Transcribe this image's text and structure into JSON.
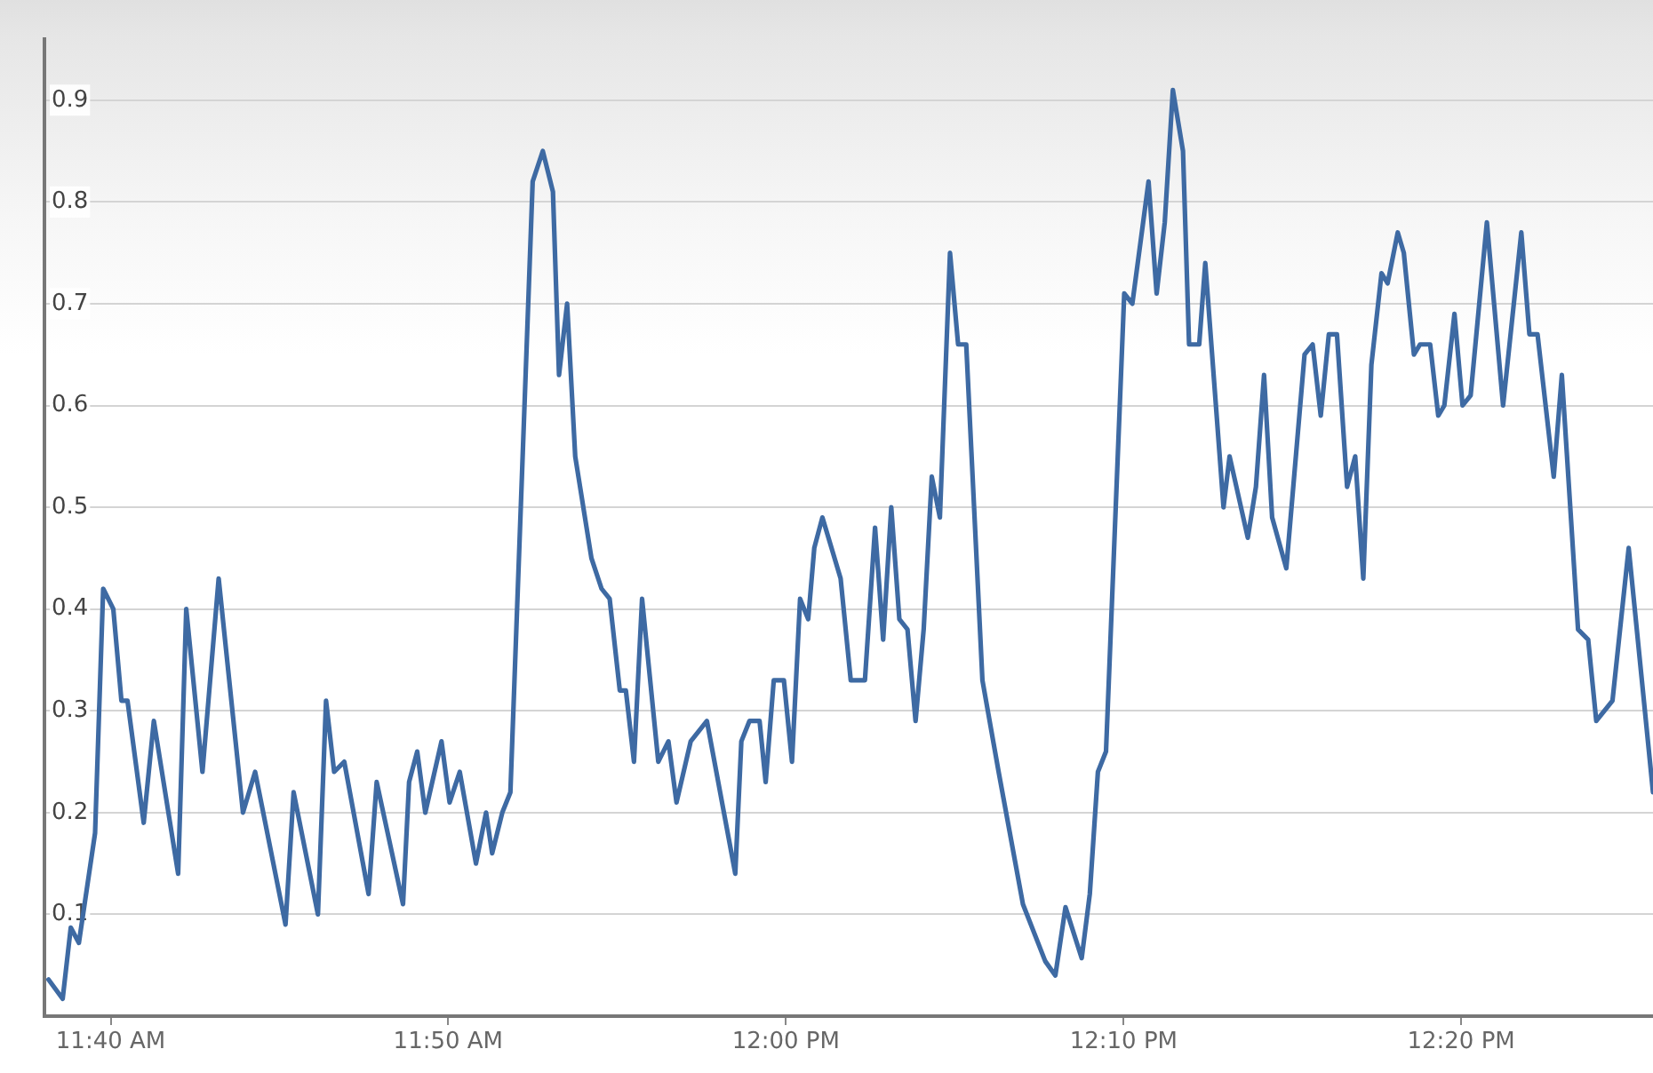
{
  "chart_data": {
    "type": "line",
    "xlim": [
      11.634,
      12.428
    ],
    "ylim": [
      0,
      0.96
    ],
    "xticks": [
      {
        "value": 11.6667,
        "label": "11:40 AM"
      },
      {
        "value": 11.8333,
        "label": "11:50 AM"
      },
      {
        "value": 12,
        "label": "12:00 PM"
      },
      {
        "value": 12.1667,
        "label": "12:10 PM"
      },
      {
        "value": 12.3333,
        "label": "12:20 PM"
      }
    ],
    "yticks": [
      0.1,
      0.2,
      0.3,
      0.4,
      0.5,
      0.6,
      0.7,
      0.8,
      0.9
    ],
    "grid": "y",
    "legend": false,
    "marker": "none",
    "line_style": "solid",
    "series": [
      {
        "color": "#3e6aa3",
        "x": [
          11.636,
          11.643,
          11.647,
          11.651,
          11.659,
          11.663,
          11.668,
          11.672,
          11.675,
          11.683,
          11.688,
          11.7,
          11.704,
          11.712,
          11.72,
          11.732,
          11.738,
          11.753,
          11.757,
          11.769,
          11.773,
          11.777,
          11.782,
          11.794,
          11.798,
          11.811,
          11.814,
          11.818,
          11.822,
          11.83,
          11.834,
          11.839,
          11.847,
          11.852,
          11.855,
          11.86,
          11.864,
          11.875,
          11.88,
          11.885,
          11.888,
          11.892,
          11.896,
          11.904,
          11.909,
          11.913,
          11.918,
          11.921,
          11.925,
          11.929,
          11.937,
          11.942,
          11.946,
          11.953,
          11.961,
          11.975,
          11.978,
          11.982,
          11.987,
          11.99,
          11.994,
          11.999,
          12.003,
          12.007,
          12.011,
          12.014,
          12.018,
          12.027,
          12.032,
          12.039,
          12.044,
          12.048,
          12.052,
          12.056,
          12.06,
          12.064,
          12.068,
          12.072,
          12.076,
          12.081,
          12.085,
          12.089,
          12.097,
          12.105,
          12.117,
          12.128,
          12.133,
          12.138,
          12.146,
          12.15,
          12.154,
          12.158,
          12.167,
          12.171,
          12.179,
          12.183,
          12.187,
          12.191,
          12.196,
          12.199,
          12.204,
          12.207,
          12.216,
          12.219,
          12.228,
          12.232,
          12.236,
          12.24,
          12.247,
          12.256,
          12.26,
          12.264,
          12.268,
          12.272,
          12.277,
          12.281,
          12.285,
          12.289,
          12.294,
          12.297,
          12.302,
          12.305,
          12.31,
          12.313,
          12.318,
          12.322,
          12.325,
          12.33,
          12.334,
          12.338,
          12.346,
          12.354,
          12.363,
          12.367,
          12.371,
          12.379,
          12.383,
          12.391,
          12.396,
          12.4,
          12.408,
          12.416,
          12.424,
          12.428
        ],
        "values": [
          0.036,
          0.017,
          0.087,
          0.072,
          0.18,
          0.42,
          0.4,
          0.31,
          0.31,
          0.19,
          0.29,
          0.14,
          0.4,
          0.24,
          0.43,
          0.2,
          0.24,
          0.09,
          0.22,
          0.1,
          0.31,
          0.24,
          0.25,
          0.12,
          0.23,
          0.11,
          0.23,
          0.26,
          0.2,
          0.27,
          0.21,
          0.24,
          0.15,
          0.2,
          0.16,
          0.2,
          0.22,
          0.82,
          0.85,
          0.81,
          0.63,
          0.7,
          0.55,
          0.45,
          0.42,
          0.41,
          0.32,
          0.32,
          0.25,
          0.41,
          0.25,
          0.27,
          0.21,
          0.27,
          0.29,
          0.14,
          0.27,
          0.29,
          0.29,
          0.23,
          0.33,
          0.33,
          0.25,
          0.41,
          0.39,
          0.46,
          0.49,
          0.43,
          0.33,
          0.33,
          0.48,
          0.37,
          0.5,
          0.39,
          0.38,
          0.29,
          0.38,
          0.53,
          0.49,
          0.75,
          0.66,
          0.66,
          0.33,
          0.24,
          0.11,
          0.054,
          0.04,
          0.107,
          0.057,
          0.12,
          0.24,
          0.26,
          0.71,
          0.7,
          0.82,
          0.71,
          0.78,
          0.91,
          0.85,
          0.66,
          0.66,
          0.74,
          0.5,
          0.55,
          0.47,
          0.52,
          0.63,
          0.49,
          0.44,
          0.65,
          0.66,
          0.59,
          0.67,
          0.67,
          0.52,
          0.55,
          0.43,
          0.64,
          0.73,
          0.72,
          0.77,
          0.75,
          0.65,
          0.66,
          0.66,
          0.59,
          0.6,
          0.69,
          0.6,
          0.61,
          0.78,
          0.6,
          0.77,
          0.67,
          0.67,
          0.53,
          0.63,
          0.38,
          0.37,
          0.29,
          0.31,
          0.46,
          0.3,
          0.22
        ]
      }
    ]
  }
}
